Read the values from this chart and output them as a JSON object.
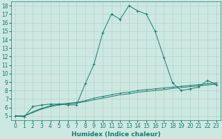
{
  "xlabel": "Humidex (Indice chaleur)",
  "background_color": "#cce8e0",
  "grid_color": "#aacfc8",
  "line_color": "#1a7a6e",
  "x_data": [
    0,
    1,
    2,
    3,
    4,
    5,
    6,
    7,
    8,
    9,
    10,
    11,
    12,
    13,
    14,
    15,
    16,
    17,
    18,
    19,
    20,
    21,
    22,
    23
  ],
  "y_series1": [
    5.0,
    4.9,
    6.1,
    6.3,
    6.4,
    6.4,
    6.3,
    6.3,
    8.8,
    11.1,
    14.8,
    17.0,
    16.4,
    18.0,
    17.4,
    17.0,
    15.0,
    11.9,
    8.9,
    8.0,
    8.2,
    8.4,
    9.2,
    8.7
  ],
  "y_series2": [
    5.0,
    5.0,
    5.5,
    5.9,
    6.2,
    6.4,
    6.5,
    6.6,
    6.8,
    7.1,
    7.3,
    7.5,
    7.7,
    7.8,
    8.0,
    8.1,
    8.2,
    8.3,
    8.4,
    8.5,
    8.6,
    8.7,
    8.8,
    8.9
  ],
  "y_series3": [
    5.0,
    5.0,
    5.4,
    5.8,
    6.1,
    6.3,
    6.4,
    6.5,
    6.7,
    6.9,
    7.1,
    7.3,
    7.5,
    7.6,
    7.8,
    7.9,
    8.0,
    8.1,
    8.25,
    8.35,
    8.45,
    8.55,
    8.65,
    8.75
  ],
  "ylim": [
    4.5,
    18.5
  ],
  "xlim": [
    -0.5,
    23.5
  ],
  "yticks": [
    5,
    6,
    7,
    8,
    9,
    10,
    11,
    12,
    13,
    14,
    15,
    16,
    17,
    18
  ],
  "xticks": [
    0,
    1,
    2,
    3,
    4,
    5,
    6,
    7,
    8,
    9,
    10,
    11,
    12,
    13,
    14,
    15,
    16,
    17,
    18,
    19,
    20,
    21,
    22,
    23
  ],
  "xlabel_fontsize": 6.5,
  "tick_fontsize": 5.5,
  "linewidth": 0.7,
  "marker_size": 2.5
}
